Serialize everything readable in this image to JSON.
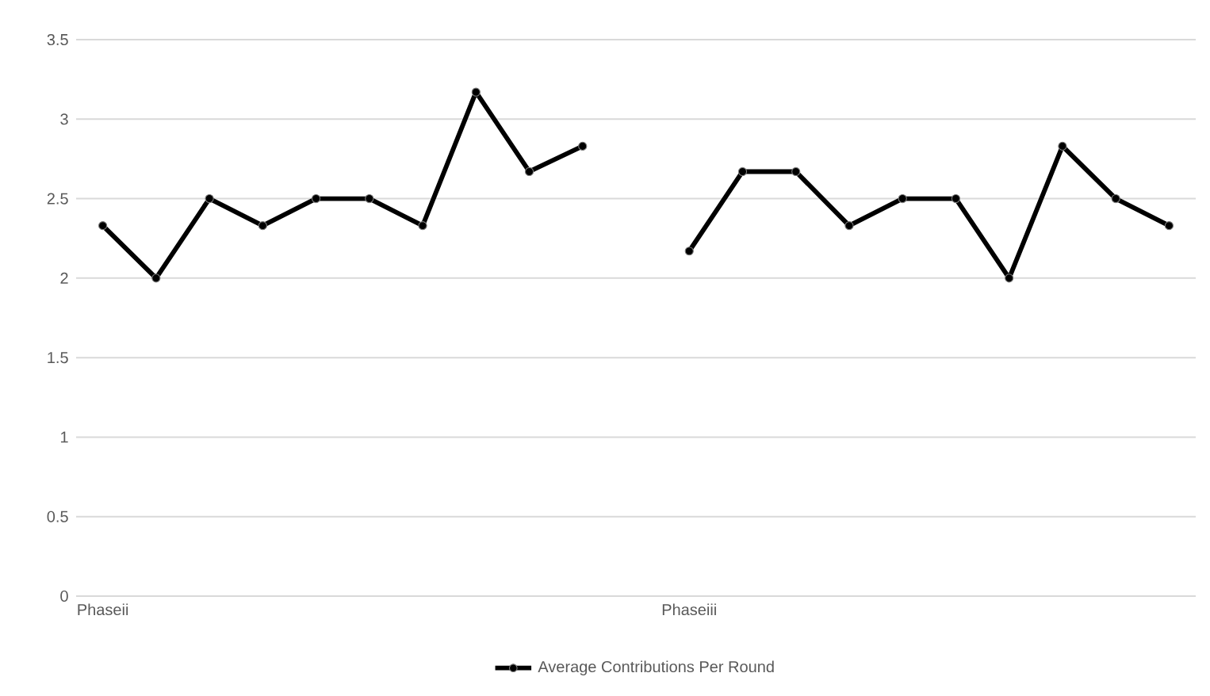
{
  "chart_data": {
    "type": "line",
    "categories": [
      "Phaseii",
      null,
      null,
      null,
      null,
      null,
      null,
      null,
      null,
      null,
      null,
      "Phaseiii",
      null,
      null,
      null,
      null,
      null,
      null,
      null,
      null,
      null
    ],
    "series": [
      {
        "name": "Average Contributions Per Round",
        "color": "#000000",
        "values": [
          2.33,
          2.0,
          2.5,
          2.33,
          2.5,
          2.5,
          2.33,
          3.17,
          2.67,
          2.83,
          null,
          2.17,
          2.67,
          2.67,
          2.33,
          2.5,
          2.5,
          2.0,
          2.83,
          2.5,
          2.33
        ]
      }
    ],
    "ylim": [
      0,
      3.5
    ],
    "yticks": [
      0,
      0.5,
      1,
      1.5,
      2,
      2.5,
      3,
      3.5
    ],
    "grid": "y",
    "legend": "bottom",
    "marker": "circle",
    "line_style": "solid"
  }
}
